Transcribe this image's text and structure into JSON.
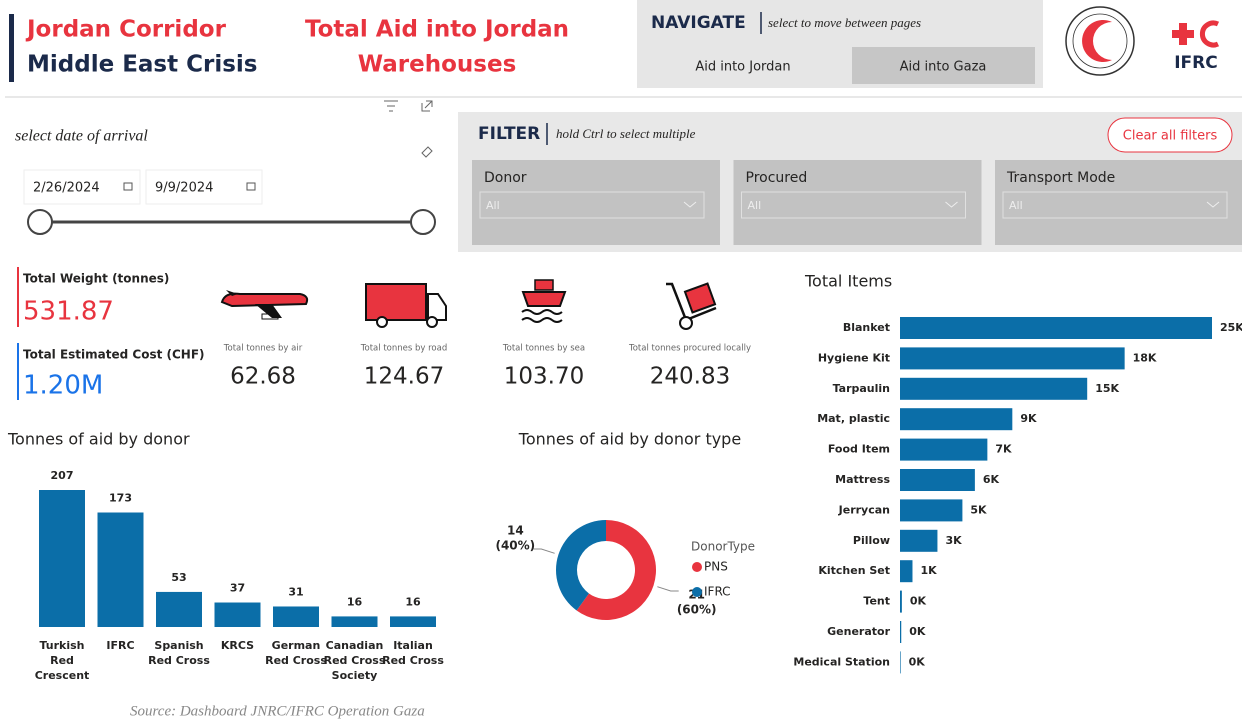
{
  "header": {
    "title_lines": [
      "Jordan Corridor",
      "Middle East Crisis"
    ],
    "page_title_lines": [
      "Total Aid into Jordan",
      "Warehouses"
    ]
  },
  "navigation": {
    "heading": "NAVIGATE",
    "hint": "select to move between pages",
    "buttons": [
      "Aid into Jordan",
      "Aid into Gaza"
    ]
  },
  "logos": {
    "ifrc": "IFRC"
  },
  "date_slicer": {
    "label": "select date of arrival",
    "start": "2/26/2024",
    "end": "9/9/2024"
  },
  "filter": {
    "heading": "FILTER",
    "hint": "hold Ctrl to select multiple",
    "clear": "Clear all filters",
    "dropdowns": [
      {
        "label": "Donor",
        "value": "All"
      },
      {
        "label": "Procured",
        "value": "All"
      },
      {
        "label": "Transport Mode",
        "value": "All"
      }
    ]
  },
  "kpis": [
    {
      "label": "Total Weight (tonnes)",
      "value": "531.87"
    },
    {
      "label": "Total Estimated Cost (CHF)",
      "value": "1.20M"
    }
  ],
  "cards": [
    {
      "label": "Total tonnes by air",
      "value": "62.68"
    },
    {
      "label": "Total tonnes by road",
      "value": "124.67"
    },
    {
      "label": "Total tonnes by sea",
      "value": "103.70"
    },
    {
      "label": "Total tonnes procured locally",
      "value": "240.83"
    }
  ],
  "chart_data": [
    {
      "type": "bar",
      "title": "Tonnes of aid by donor",
      "color": "#0b6ea8",
      "categories": [
        "Turkish Red Crescent",
        "IFRC",
        "Spanish Red Cross",
        "KRCS",
        "German Red Cross",
        "Canadian Red Cross Society",
        "Italian Red Cross"
      ],
      "values": [
        207,
        173,
        53,
        37,
        31,
        16,
        16
      ]
    },
    {
      "type": "donut",
      "title": "Tonnes of aid by donor type",
      "legend_title": "DonorType",
      "categories": [
        "PNS",
        "IFRC"
      ],
      "values": [
        21,
        14
      ],
      "percent_labels": [
        "(60%)",
        "(40%)"
      ],
      "colors": [
        "#e8343f",
        "#0b6ea8"
      ]
    },
    {
      "type": "hbar",
      "title": "Total Items",
      "color": "#0b6ea8",
      "categories": [
        "Blanket",
        "Hygiene Kit",
        "Tarpaulin",
        "Mat, plastic",
        "Food Item",
        "Mattress",
        "Jerrycan",
        "Pillow",
        "Kitchen Set",
        "Tent",
        "Generator",
        "Medical Station"
      ],
      "values": [
        25000,
        18000,
        15000,
        9000,
        7000,
        6000,
        5000,
        3000,
        1000,
        150,
        100,
        50
      ],
      "value_labels": [
        "25K",
        "18K",
        "15K",
        "9K",
        "7K",
        "6K",
        "5K",
        "3K",
        "1K",
        "0K",
        "0K",
        "0K"
      ]
    }
  ],
  "source": "Source: Dashboard JNRC/IFRC Operation Gaza"
}
